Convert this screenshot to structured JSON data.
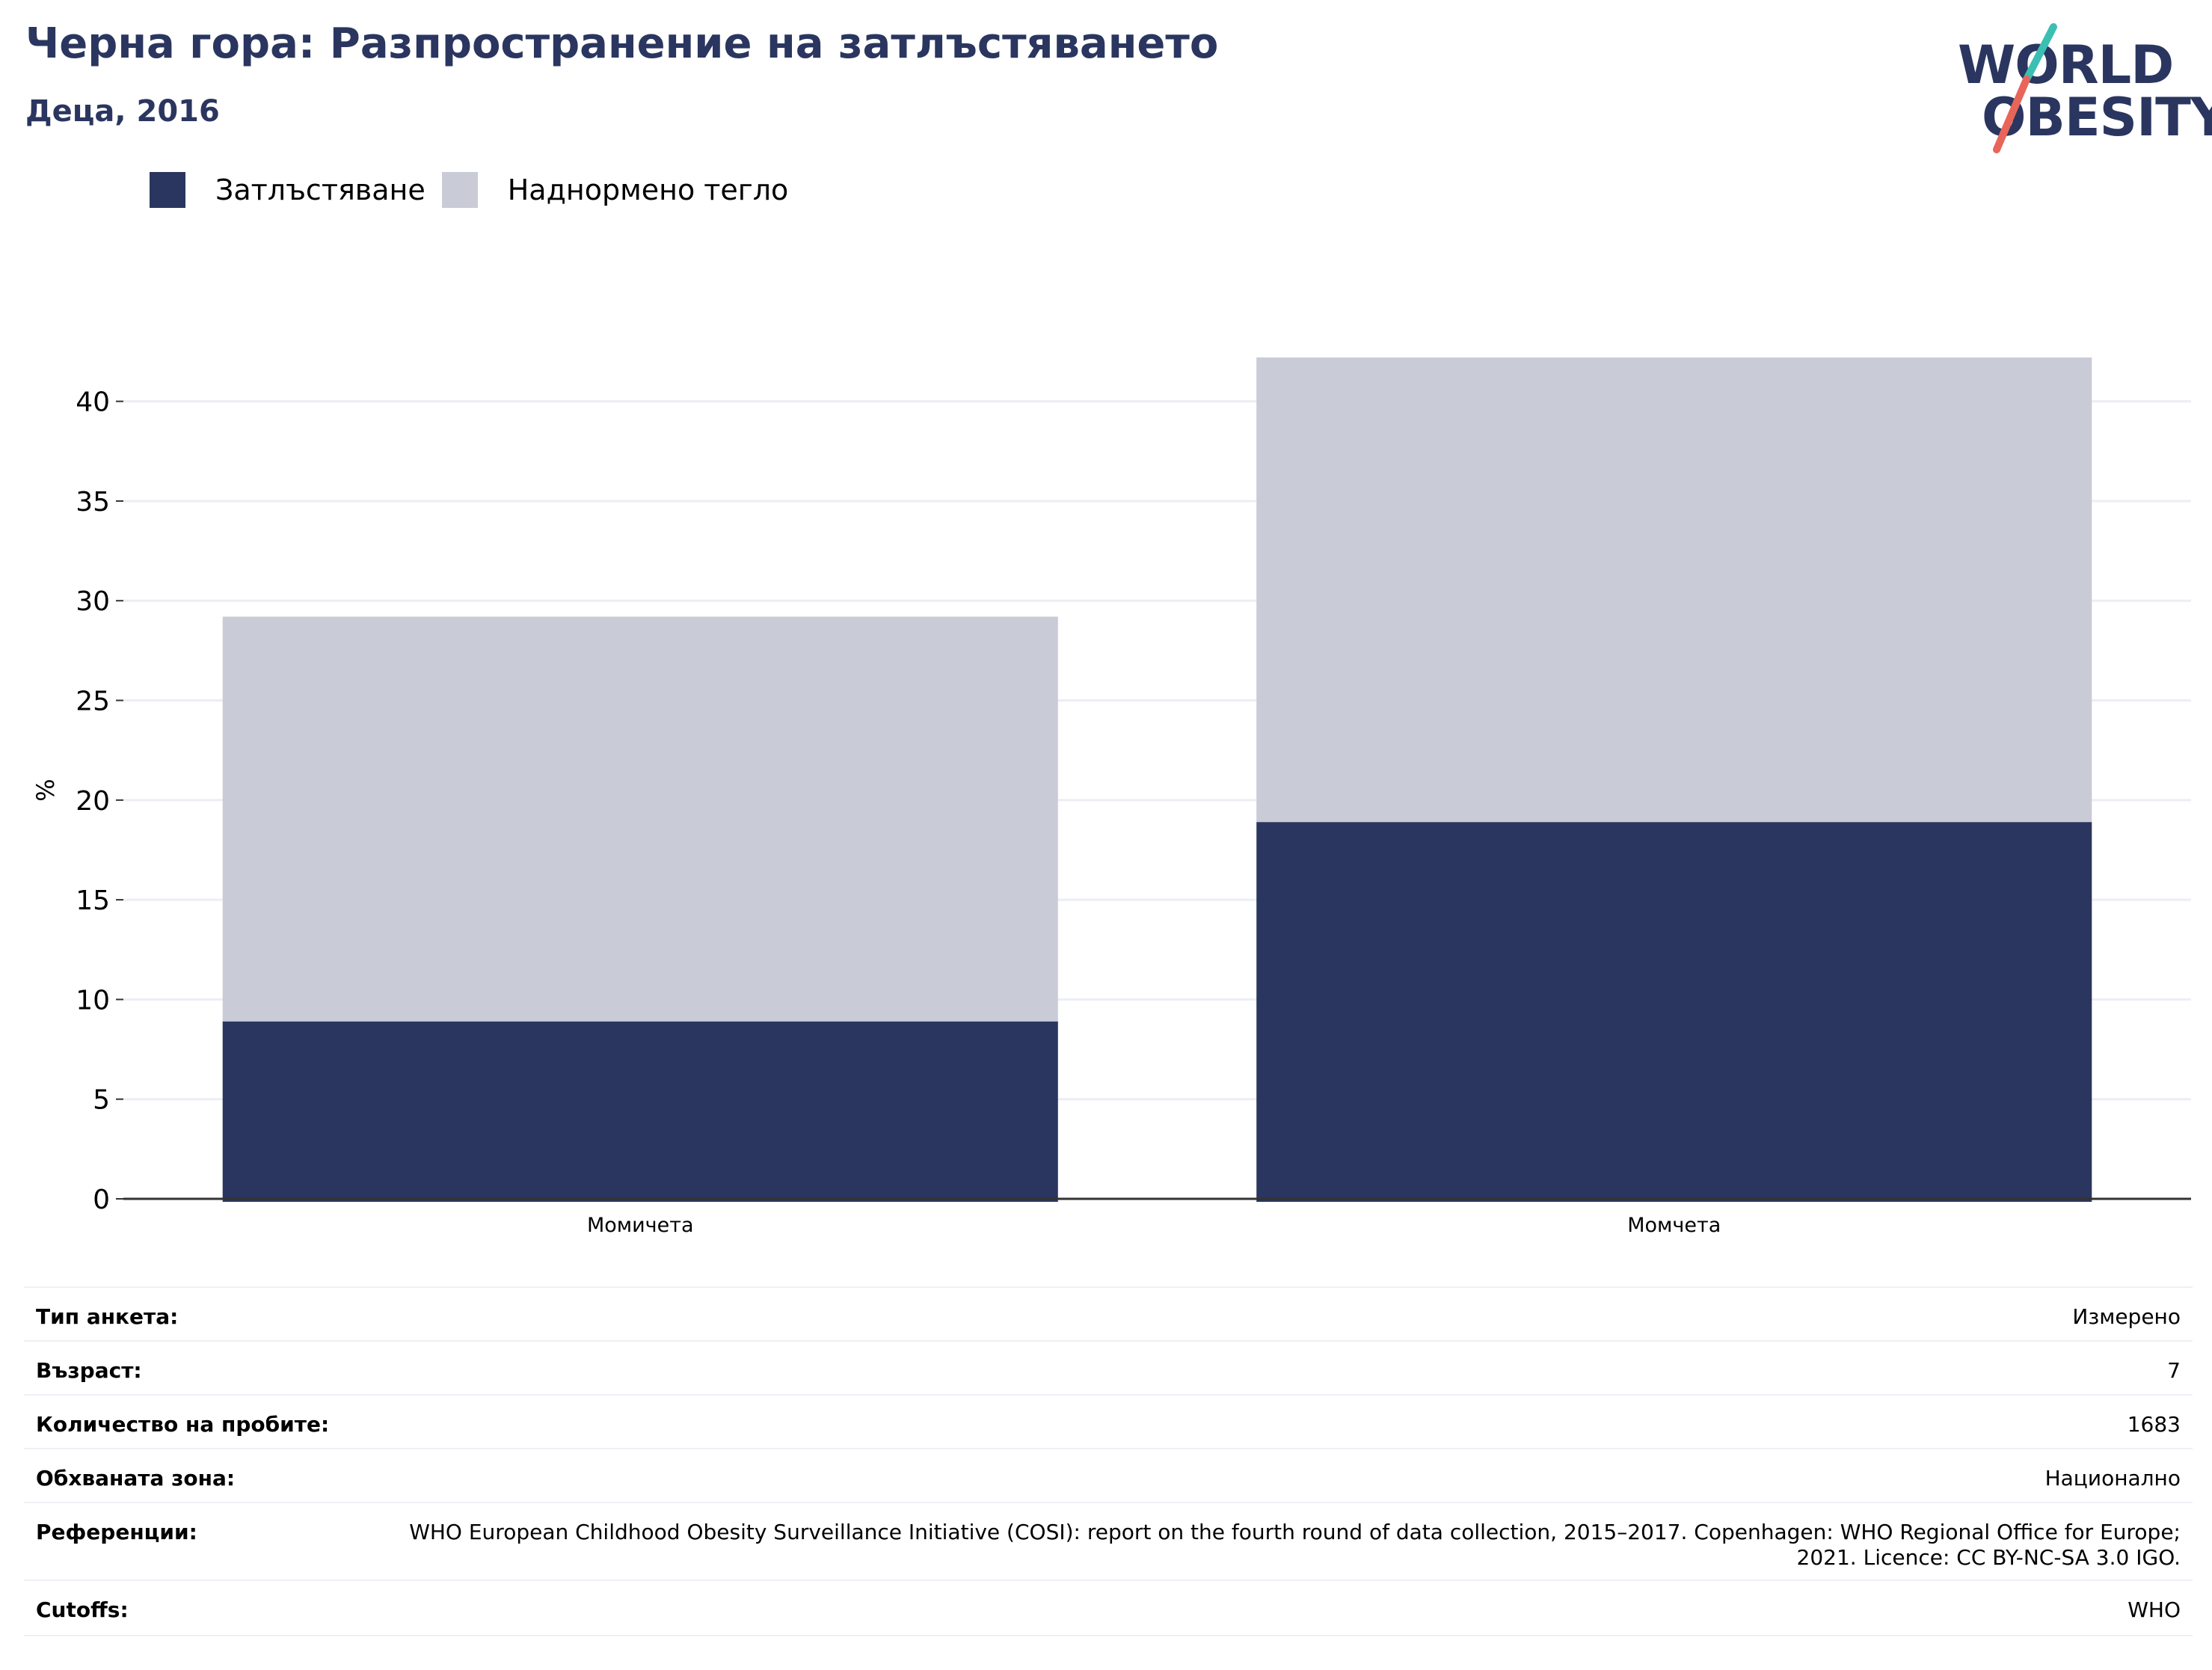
{
  "header": {
    "title": "Черна гора: Разпространение на затлъстяването",
    "subtitle": "Деца, 2016"
  },
  "logo": {
    "line1": "WORLD",
    "line2": "OBESITY",
    "colors": {
      "text": "#2a365f",
      "teal": "#3bbfb2",
      "coral": "#e8655a"
    }
  },
  "legend": [
    {
      "label": "Затлъстяване",
      "color": "#2a365f"
    },
    {
      "label": "Наднормено тегло",
      "color": "#c9cbd7"
    }
  ],
  "chart_data": {
    "type": "bar",
    "stacked": true,
    "categories": [
      "Момичета",
      "Момчета"
    ],
    "series": [
      {
        "name": "Затлъстяване",
        "color": "#2a365f",
        "values": [
          8.9,
          18.9
        ]
      },
      {
        "name": "Наднормено тегло",
        "color": "#c9cbd7",
        "values": [
          20.3,
          23.3
        ]
      }
    ],
    "ylabel": "%",
    "ylim": [
      0,
      42.5
    ],
    "yticks": [
      0,
      5,
      10,
      15,
      20,
      25,
      30,
      35,
      40
    ],
    "grid": true,
    "legend_position": "top-left"
  },
  "info": [
    {
      "label": "Тип анкета:",
      "value": "Измерено"
    },
    {
      "label": "Възраст:",
      "value": "7"
    },
    {
      "label": "Количество на пробите:",
      "value": "1683"
    },
    {
      "label": "Обхваната зона:",
      "value": "Национално"
    },
    {
      "label": "Референции:",
      "value": "WHO European Childhood Obesity Surveillance Initiative (COSI): report on the fourth round of data collection, 2015–2017. Copenhagen: WHO Regional Office for Europe; 2021. Licence: CC BY-NC-SA 3.0 IGO."
    },
    {
      "label": "Cutoffs:",
      "value": "WHO"
    }
  ]
}
